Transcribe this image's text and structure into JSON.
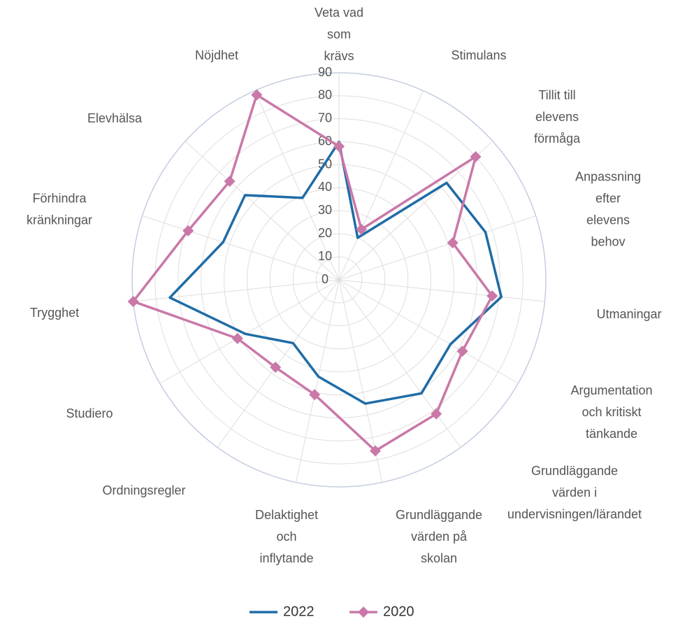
{
  "chart_data": {
    "type": "radar",
    "categories": [
      "Veta vad som krävs",
      "Stimulans",
      "Tillit till elevens förmåga",
      "Anpassning efter elevens behov",
      "Utmaningar",
      "Argumentation och kritiskt tänkande",
      "Grundläggande värden i undervisningen/lärandet",
      "Grundläggande värden på skolan",
      "Delaktighet och inflytande",
      "Ordningsregler",
      "Studiero",
      "Trygghet",
      "Förhindra kränkningar",
      "Elevhälsa",
      "Nöjdhet"
    ],
    "series": [
      {
        "name": "2022",
        "color": "#1f6ca6",
        "values": [
          60,
          20,
          63,
          67,
          71,
          56,
          61,
          55,
          43,
          34,
          47,
          74,
          53,
          55,
          39
        ]
      },
      {
        "name": "2020",
        "color": "#c978a8",
        "values": [
          58,
          24,
          80,
          52,
          67,
          62,
          72,
          76,
          51,
          47,
          51,
          90,
          69,
          64,
          88
        ]
      }
    ],
    "ylim": [
      0,
      90
    ],
    "yticks": [
      0,
      10,
      20,
      30,
      40,
      50,
      60,
      70,
      80,
      90
    ],
    "grid": true,
    "legend": "bottom"
  }
}
